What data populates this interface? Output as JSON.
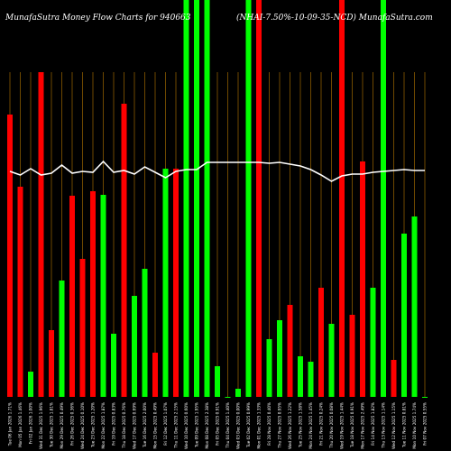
{
  "chart_data": {
    "type": "bar",
    "title_left": "MunafaSutra  Money Flow  Charts for 940663",
    "title_right": "(NHAI-7.50%-10-09-35-NCD) MunafaSutra.com",
    "ylim": [
      0,
      440
    ],
    "categories": [
      "Tue 06 Jan 2026 1.71%",
      "Mon 05 Jan 2026 1.46%",
      "Fri 02 Jan 2026 1.00%",
      "Wed 31 Dec 2025 1.96%",
      "Tue 30 Dec 2025 1.81%",
      "Mon 29 Dec 2025 0.49%",
      "Fri 26 Dec 2025 0.36%",
      "Wed 24 Dec 2025 0.10%",
      "Tue 23 Dec 2025 1.20%",
      "Mon 22 Dec 2025 1.87%",
      "Fri 19 Dec 2025 0.83%",
      "Thu 18 Dec 2025 0.76%",
      "Wed 17 Dec 2025 0.69%",
      "Tue 16 Dec 2025 2.00%",
      "Mon 15 Dec 2025 0.49%",
      "Fri 12 Dec 2025 1.07%",
      "Thu 11 Dec 2025 2.15%",
      "Wed 10 Dec 2025 0.60%",
      "Tue 09 Dec 2025 1.95%",
      "Mon 08 Dec 2025 2.38%",
      "Fri 05 Dec 2025 0.91%",
      "Thu 04 Dec 2025 1.40%",
      "Wed 03 Dec 2025 0.00%",
      "Tue 02 Dec 2025 0.99%",
      "Mon 01 Dec 2025 1.33%",
      "Fri 28 Nov 2025 0.40%",
      "Thu 27 Nov 2025 0.95%",
      "Wed 26 Nov 2025 1.22%",
      "Tue 25 Nov 2025 1.58%",
      "Mon 24 Nov 2025 1.45%",
      "Fri 21 Nov 2025 0.24%",
      "Thu 20 Nov 2025 0.08%",
      "Wed 19 Nov 2025 1.44%",
      "Tue 18 Nov 2025 0.91%",
      "Mon 17 Nov 2025 2.49%",
      "Fri 14 Nov 2025 1.82%",
      "Thu 13 Nov 2025 1.14%",
      "Wed 12 Nov 2025 1.15%",
      "Tue 11 Nov 2025 0.81%",
      "Mon 10 Nov 2025 1.74%",
      "Fri 07 Nov 2025 0.55%"
    ],
    "flow_colors": {
      "up": "#00ff00",
      "down": "#ff0000",
      "grid": "#8b5a00",
      "line": "#ffffff"
    },
    "bar_colors": [
      "down",
      "down",
      "up",
      "down",
      "down",
      "up",
      "down",
      "down",
      "down",
      "up",
      "up",
      "down",
      "up",
      "up",
      "down",
      "up",
      "down",
      "up",
      "up",
      "up",
      "up",
      "up",
      "up",
      "up",
      "down",
      "up",
      "up",
      "down",
      "up",
      "up",
      "down",
      "up",
      "down",
      "down",
      "down",
      "up",
      "up",
      "down",
      "up",
      "up",
      "up"
    ],
    "values": [
      313,
      233,
      28,
      360,
      74,
      129,
      223,
      153,
      228,
      224,
      70,
      325,
      112,
      142,
      49,
      253,
      253,
      440,
      440,
      440,
      34,
      0,
      9,
      440,
      440,
      64,
      85,
      102,
      45,
      39,
      121,
      81,
      440,
      91,
      261,
      121,
      440,
      41,
      181,
      200,
      0
    ],
    "line_values": [
      250,
      246,
      253,
      246,
      248,
      257,
      248,
      250,
      249,
      261,
      249,
      251,
      247,
      255,
      249,
      243,
      250,
      252,
      252,
      260,
      260,
      260,
      260,
      260,
      260,
      259,
      260,
      258,
      256,
      252,
      246,
      239,
      245,
      247,
      247,
      249,
      250,
      251,
      252,
      251,
      251
    ]
  }
}
